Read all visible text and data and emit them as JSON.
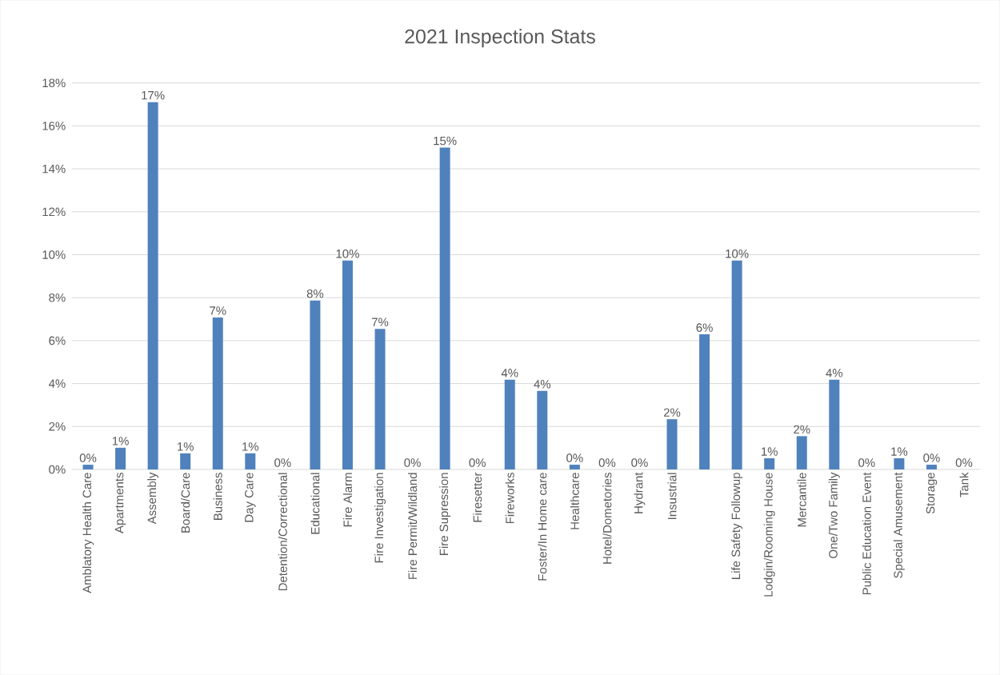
{
  "chart_data": {
    "type": "bar",
    "title": "2021 Inspection Stats",
    "categories": [
      "Amblatory Health Care",
      "Apartments",
      "Assembly",
      "Board/Care",
      "Business",
      "Day Care",
      "Detention/Correctional",
      "Educational",
      "Fire Alarm",
      "Fire Investigation",
      "Fire Permit/Wildland",
      "Fire Supression",
      "Firesetter",
      "Fireworks",
      "Foster/In Home care",
      "Healthcare",
      "Hotel/Dometories",
      "Hydrant",
      "Insustrial",
      null,
      "Life Safety Followup",
      "Lodgin/Rooming House",
      "Mercantile",
      "One/Two Family",
      "Public Education Event",
      "Special Amusement",
      "Storage",
      "Tank"
    ],
    "values": [
      0.22,
      1.01,
      17.11,
      0.75,
      7.08,
      0.75,
      0,
      7.87,
      9.73,
      6.55,
      0,
      14.99,
      0,
      4.18,
      3.66,
      0.22,
      0,
      0,
      2.34,
      6.29,
      9.73,
      0.52,
      1.55,
      4.18,
      0,
      0.52,
      0.22,
      0
    ],
    "value_labels": [
      "0%",
      "1%",
      "17%",
      "1%",
      "7%",
      "1%",
      "0%",
      "8%",
      "10%",
      "7%",
      "0%",
      "15%",
      "0%",
      "4%",
      "4%",
      "0%",
      "0%",
      "0%",
      "2%",
      "6%",
      "10%",
      "1%",
      "2%",
      "4%",
      "0%",
      "1%",
      "0%",
      "0%"
    ],
    "color": "#4f81bd",
    "ylim": [
      0,
      18
    ],
    "yticks": [
      {
        "value": 0,
        "label": "0%"
      },
      {
        "value": 2,
        "label": "2%"
      },
      {
        "value": 4,
        "label": "4%"
      },
      {
        "value": 6,
        "label": "6%"
      },
      {
        "value": 8,
        "label": "8%"
      },
      {
        "value": 10,
        "label": "10%"
      },
      {
        "value": 12,
        "label": "12%"
      },
      {
        "value": 14,
        "label": "14%"
      },
      {
        "value": 16,
        "label": "16%"
      },
      {
        "value": 18,
        "label": "18%"
      }
    ],
    "grid": "y"
  }
}
